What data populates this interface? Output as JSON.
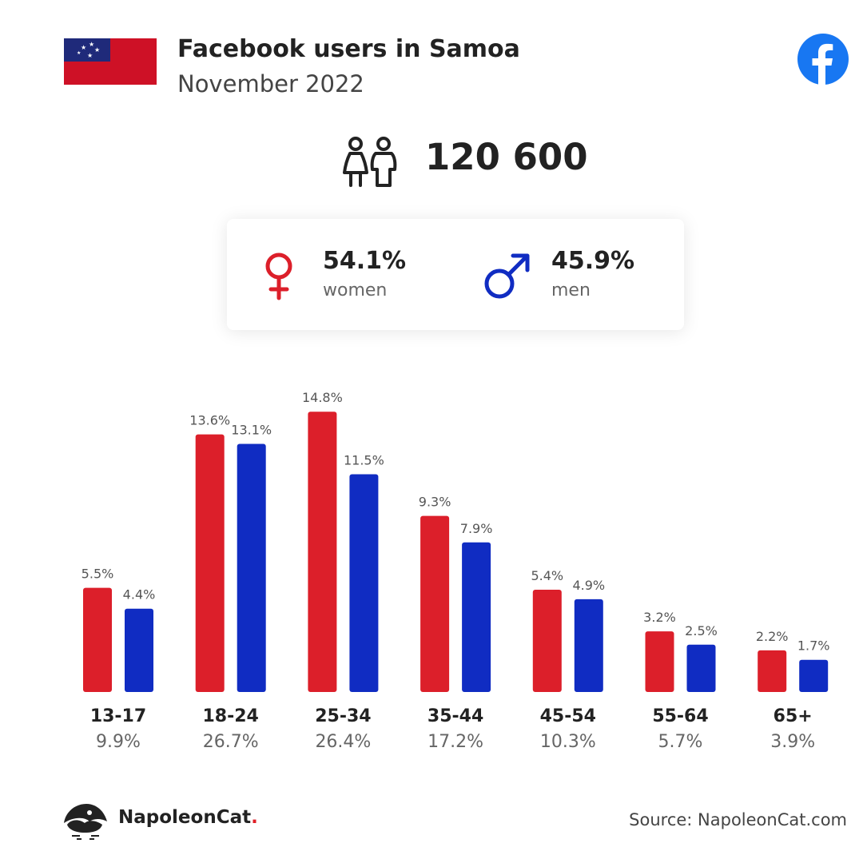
{
  "header": {
    "title": "Facebook users in Samoa",
    "subtitle": "November 2022",
    "flag_icon": "samoa-flag-icon",
    "platform_icon": "facebook-icon"
  },
  "total": {
    "icon": "people-icon",
    "value": "120 600"
  },
  "gender": {
    "women": {
      "icon": "female-symbol-icon",
      "value": "54.1%",
      "label": "women",
      "color": "#dc1f2a"
    },
    "men": {
      "icon": "male-symbol-icon",
      "value": "45.9%",
      "label": "men",
      "color": "#102cc2"
    }
  },
  "chart_data": {
    "type": "bar",
    "categories": [
      "13-17",
      "18-24",
      "25-34",
      "35-44",
      "45-54",
      "55-64",
      "65+"
    ],
    "category_totals": [
      "9.9%",
      "26.7%",
      "26.4%",
      "17.2%",
      "10.3%",
      "5.7%",
      "3.9%"
    ],
    "series": [
      {
        "values": [
          5.5,
          13.6,
          14.8,
          9.3,
          5.4,
          3.2,
          2.2
        ],
        "labels": [
          "5.5%",
          "13.6%",
          "14.8%",
          "9.3%",
          "5.4%",
          "3.2%",
          "2.2%"
        ],
        "color": "#dc1f2a"
      },
      {
        "values": [
          4.4,
          13.1,
          11.5,
          7.9,
          4.9,
          2.5,
          1.7
        ],
        "labels": [
          "4.4%",
          "13.1%",
          "11.5%",
          "7.9%",
          "4.9%",
          "2.5%",
          "1.7%"
        ],
        "color": "#102cc2"
      }
    ],
    "ylim": [
      0,
      15
    ],
    "grid": false,
    "legend": "none"
  },
  "footer": {
    "brand": "NapoleonCat",
    "brand_dot": ".",
    "logo_icon": "napoleoncat-logo-icon",
    "source": "Source: NapoleonCat.com"
  }
}
